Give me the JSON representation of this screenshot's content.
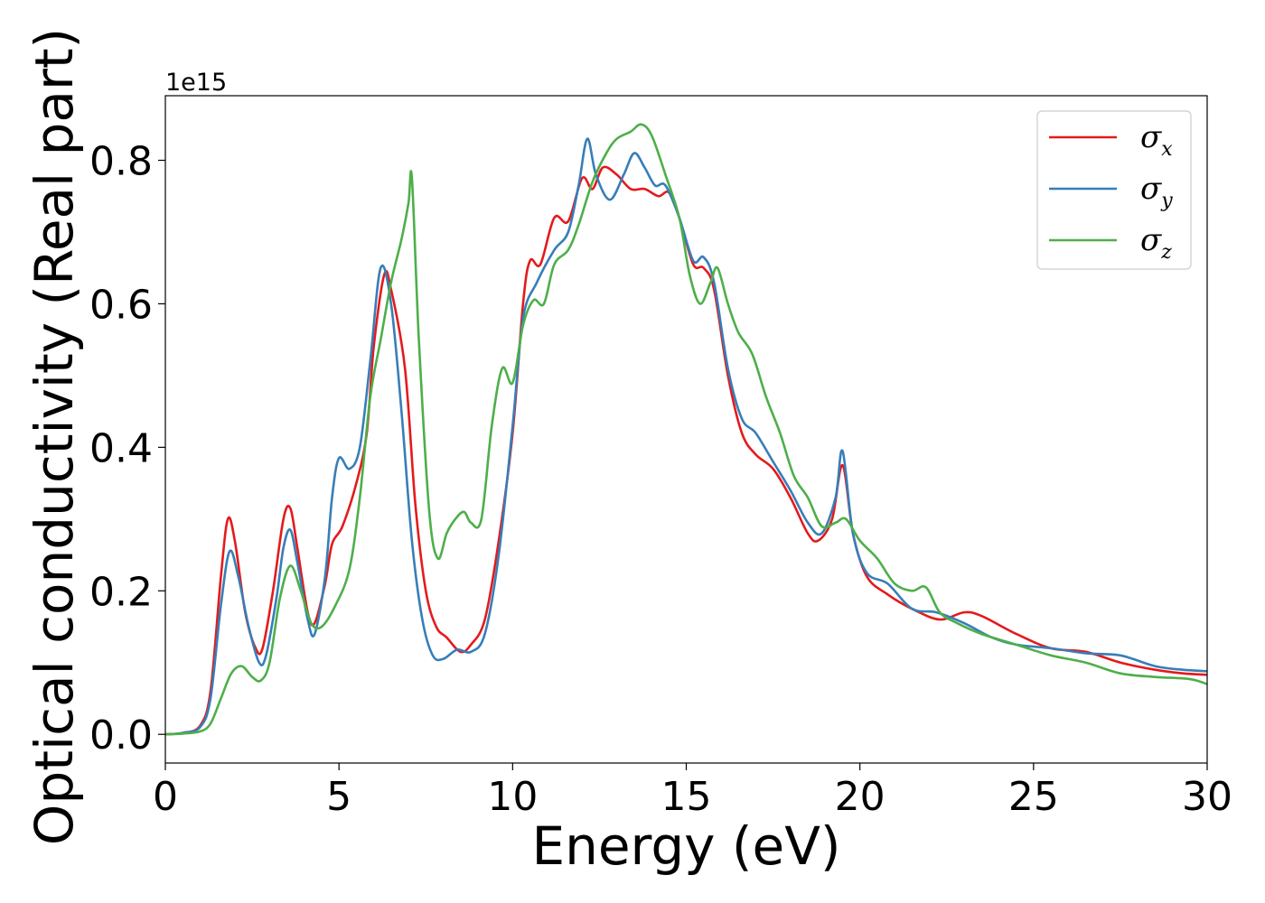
{
  "chart_data": {
    "type": "line",
    "title": "",
    "xlabel": "Energy (eV)",
    "ylabel": "Optical conductivity (Real part)",
    "y_offset_label": "1e15",
    "xlim": [
      0,
      30
    ],
    "ylim": [
      -0.04,
      0.89
    ],
    "x_ticks": [
      0,
      5,
      10,
      15,
      20,
      25,
      30
    ],
    "x_tick_labels": [
      "0",
      "5",
      "10",
      "15",
      "20",
      "25",
      "30"
    ],
    "y_ticks": [
      0.0,
      0.2,
      0.4,
      0.6,
      0.8
    ],
    "y_tick_labels": [
      "0.0",
      "0.2",
      "0.4",
      "0.6",
      "0.8"
    ],
    "grid": false,
    "legend_position": "top-right",
    "series": [
      {
        "name": "σx",
        "symbol": "σ",
        "subscript": "x",
        "color": "#e41a1c",
        "points": [
          [
            0,
            0
          ],
          [
            0.5,
            0.002
          ],
          [
            1.0,
            0.012
          ],
          [
            1.3,
            0.06
          ],
          [
            1.6,
            0.22
          ],
          [
            1.8,
            0.3
          ],
          [
            2.0,
            0.27
          ],
          [
            2.3,
            0.17
          ],
          [
            2.6,
            0.12
          ],
          [
            2.8,
            0.12
          ],
          [
            3.1,
            0.2
          ],
          [
            3.4,
            0.3
          ],
          [
            3.6,
            0.315
          ],
          [
            3.8,
            0.26
          ],
          [
            4.1,
            0.17
          ],
          [
            4.3,
            0.155
          ],
          [
            4.6,
            0.21
          ],
          [
            4.8,
            0.265
          ],
          [
            5.1,
            0.29
          ],
          [
            5.5,
            0.35
          ],
          [
            5.8,
            0.42
          ],
          [
            6.0,
            0.54
          ],
          [
            6.3,
            0.64
          ],
          [
            6.5,
            0.62
          ],
          [
            6.9,
            0.51
          ],
          [
            7.2,
            0.32
          ],
          [
            7.5,
            0.2
          ],
          [
            7.8,
            0.15
          ],
          [
            8.1,
            0.135
          ],
          [
            8.5,
            0.115
          ],
          [
            8.8,
            0.125
          ],
          [
            9.2,
            0.16
          ],
          [
            9.6,
            0.27
          ],
          [
            10.0,
            0.42
          ],
          [
            10.3,
            0.6
          ],
          [
            10.5,
            0.66
          ],
          [
            10.8,
            0.655
          ],
          [
            11.2,
            0.72
          ],
          [
            11.6,
            0.715
          ],
          [
            12.0,
            0.775
          ],
          [
            12.3,
            0.76
          ],
          [
            12.6,
            0.79
          ],
          [
            13.0,
            0.78
          ],
          [
            13.4,
            0.76
          ],
          [
            13.8,
            0.76
          ],
          [
            14.2,
            0.75
          ],
          [
            14.5,
            0.755
          ],
          [
            14.8,
            0.72
          ],
          [
            15.2,
            0.655
          ],
          [
            15.5,
            0.65
          ],
          [
            15.8,
            0.62
          ],
          [
            16.2,
            0.5
          ],
          [
            16.6,
            0.42
          ],
          [
            17.0,
            0.39
          ],
          [
            17.5,
            0.37
          ],
          [
            18.0,
            0.33
          ],
          [
            18.5,
            0.28
          ],
          [
            18.8,
            0.27
          ],
          [
            19.2,
            0.3
          ],
          [
            19.5,
            0.375
          ],
          [
            19.8,
            0.28
          ],
          [
            20.2,
            0.22
          ],
          [
            20.8,
            0.195
          ],
          [
            21.5,
            0.175
          ],
          [
            22.3,
            0.16
          ],
          [
            23.0,
            0.17
          ],
          [
            23.5,
            0.165
          ],
          [
            24.5,
            0.14
          ],
          [
            25.5,
            0.12
          ],
          [
            26.5,
            0.115
          ],
          [
            27.5,
            0.1
          ],
          [
            28.5,
            0.09
          ],
          [
            29.3,
            0.085
          ],
          [
            30,
            0.083
          ]
        ]
      },
      {
        "name": "σy",
        "symbol": "σ",
        "subscript": "y",
        "color": "#377eb8",
        "points": [
          [
            0,
            0
          ],
          [
            0.5,
            0.002
          ],
          [
            1.0,
            0.01
          ],
          [
            1.3,
            0.05
          ],
          [
            1.6,
            0.18
          ],
          [
            1.85,
            0.255
          ],
          [
            2.1,
            0.22
          ],
          [
            2.4,
            0.15
          ],
          [
            2.7,
            0.1
          ],
          [
            2.9,
            0.11
          ],
          [
            3.2,
            0.19
          ],
          [
            3.4,
            0.26
          ],
          [
            3.6,
            0.285
          ],
          [
            3.8,
            0.24
          ],
          [
            4.1,
            0.16
          ],
          [
            4.3,
            0.14
          ],
          [
            4.6,
            0.22
          ],
          [
            4.8,
            0.33
          ],
          [
            5.0,
            0.385
          ],
          [
            5.3,
            0.37
          ],
          [
            5.6,
            0.4
          ],
          [
            5.9,
            0.52
          ],
          [
            6.2,
            0.65
          ],
          [
            6.5,
            0.6
          ],
          [
            6.8,
            0.45
          ],
          [
            7.1,
            0.27
          ],
          [
            7.4,
            0.16
          ],
          [
            7.7,
            0.11
          ],
          [
            8.0,
            0.105
          ],
          [
            8.4,
            0.118
          ],
          [
            8.8,
            0.115
          ],
          [
            9.2,
            0.14
          ],
          [
            9.6,
            0.25
          ],
          [
            10.0,
            0.43
          ],
          [
            10.3,
            0.58
          ],
          [
            10.7,
            0.63
          ],
          [
            11.2,
            0.675
          ],
          [
            11.6,
            0.7
          ],
          [
            11.9,
            0.765
          ],
          [
            12.15,
            0.83
          ],
          [
            12.4,
            0.78
          ],
          [
            12.8,
            0.745
          ],
          [
            13.2,
            0.78
          ],
          [
            13.5,
            0.81
          ],
          [
            13.8,
            0.79
          ],
          [
            14.1,
            0.765
          ],
          [
            14.4,
            0.765
          ],
          [
            14.8,
            0.72
          ],
          [
            15.2,
            0.66
          ],
          [
            15.5,
            0.665
          ],
          [
            15.8,
            0.63
          ],
          [
            16.2,
            0.51
          ],
          [
            16.6,
            0.44
          ],
          [
            17.0,
            0.42
          ],
          [
            17.5,
            0.38
          ],
          [
            18.0,
            0.34
          ],
          [
            18.5,
            0.295
          ],
          [
            18.9,
            0.28
          ],
          [
            19.3,
            0.33
          ],
          [
            19.5,
            0.395
          ],
          [
            19.8,
            0.28
          ],
          [
            20.2,
            0.225
          ],
          [
            20.8,
            0.21
          ],
          [
            21.5,
            0.175
          ],
          [
            22.2,
            0.17
          ],
          [
            23.0,
            0.155
          ],
          [
            23.8,
            0.135
          ],
          [
            24.5,
            0.125
          ],
          [
            25.5,
            0.12
          ],
          [
            26.5,
            0.113
          ],
          [
            27.5,
            0.11
          ],
          [
            28.5,
            0.095
          ],
          [
            29.3,
            0.09
          ],
          [
            30,
            0.088
          ]
        ]
      },
      {
        "name": "σz",
        "symbol": "σ",
        "subscript": "z",
        "color": "#4daf4a",
        "points": [
          [
            0,
            0
          ],
          [
            0.5,
            0.001
          ],
          [
            1.0,
            0.004
          ],
          [
            1.3,
            0.015
          ],
          [
            1.6,
            0.05
          ],
          [
            1.9,
            0.085
          ],
          [
            2.2,
            0.095
          ],
          [
            2.5,
            0.08
          ],
          [
            2.75,
            0.075
          ],
          [
            3.0,
            0.1
          ],
          [
            3.3,
            0.19
          ],
          [
            3.6,
            0.235
          ],
          [
            3.9,
            0.2
          ],
          [
            4.2,
            0.155
          ],
          [
            4.5,
            0.15
          ],
          [
            4.9,
            0.18
          ],
          [
            5.3,
            0.23
          ],
          [
            5.6,
            0.33
          ],
          [
            5.9,
            0.47
          ],
          [
            6.2,
            0.55
          ],
          [
            6.5,
            0.63
          ],
          [
            6.8,
            0.69
          ],
          [
            7.0,
            0.74
          ],
          [
            7.1,
            0.775
          ],
          [
            7.3,
            0.55
          ],
          [
            7.6,
            0.31
          ],
          [
            7.85,
            0.245
          ],
          [
            8.1,
            0.28
          ],
          [
            8.35,
            0.3
          ],
          [
            8.6,
            0.31
          ],
          [
            8.8,
            0.295
          ],
          [
            9.1,
            0.3
          ],
          [
            9.4,
            0.43
          ],
          [
            9.7,
            0.51
          ],
          [
            10.0,
            0.49
          ],
          [
            10.3,
            0.57
          ],
          [
            10.6,
            0.605
          ],
          [
            10.9,
            0.6
          ],
          [
            11.2,
            0.655
          ],
          [
            11.6,
            0.675
          ],
          [
            11.9,
            0.71
          ],
          [
            12.3,
            0.77
          ],
          [
            12.7,
            0.81
          ],
          [
            13.0,
            0.83
          ],
          [
            13.4,
            0.84
          ],
          [
            13.7,
            0.85
          ],
          [
            14.0,
            0.835
          ],
          [
            14.4,
            0.78
          ],
          [
            14.8,
            0.72
          ],
          [
            15.1,
            0.64
          ],
          [
            15.4,
            0.6
          ],
          [
            15.7,
            0.63
          ],
          [
            15.9,
            0.65
          ],
          [
            16.2,
            0.6
          ],
          [
            16.5,
            0.56
          ],
          [
            16.9,
            0.53
          ],
          [
            17.3,
            0.47
          ],
          [
            17.7,
            0.42
          ],
          [
            18.1,
            0.36
          ],
          [
            18.5,
            0.33
          ],
          [
            18.9,
            0.29
          ],
          [
            19.3,
            0.295
          ],
          [
            19.6,
            0.3
          ],
          [
            20.0,
            0.27
          ],
          [
            20.5,
            0.245
          ],
          [
            21.0,
            0.21
          ],
          [
            21.5,
            0.2
          ],
          [
            21.9,
            0.205
          ],
          [
            22.3,
            0.17
          ],
          [
            22.8,
            0.155
          ],
          [
            23.5,
            0.14
          ],
          [
            24.5,
            0.125
          ],
          [
            25.5,
            0.11
          ],
          [
            26.5,
            0.1
          ],
          [
            27.5,
            0.085
          ],
          [
            28.5,
            0.08
          ],
          [
            29.5,
            0.077
          ],
          [
            30,
            0.07
          ]
        ]
      }
    ]
  }
}
